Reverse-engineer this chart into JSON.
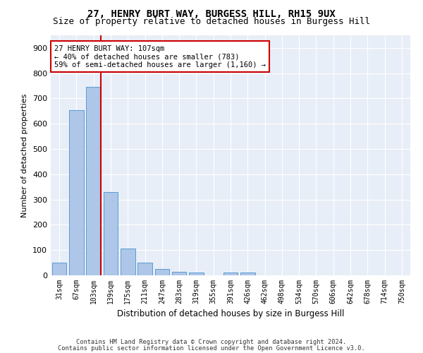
{
  "title": "27, HENRY BURT WAY, BURGESS HILL, RH15 9UX",
  "subtitle": "Size of property relative to detached houses in Burgess Hill",
  "xlabel": "Distribution of detached houses by size in Burgess Hill",
  "ylabel": "Number of detached properties",
  "footnote1": "Contains HM Land Registry data © Crown copyright and database right 2024.",
  "footnote2": "Contains public sector information licensed under the Open Government Licence v3.0.",
  "annotation_line1": "27 HENRY BURT WAY: 107sqm",
  "annotation_line2": "← 40% of detached houses are smaller (783)",
  "annotation_line3": "59% of semi-detached houses are larger (1,160) →",
  "bar_labels": [
    "31sqm",
    "67sqm",
    "103sqm",
    "139sqm",
    "175sqm",
    "211sqm",
    "247sqm",
    "283sqm",
    "319sqm",
    "355sqm",
    "391sqm",
    "426sqm",
    "462sqm",
    "498sqm",
    "534sqm",
    "570sqm",
    "606sqm",
    "642sqm",
    "678sqm",
    "714sqm",
    "750sqm"
  ],
  "bar_values": [
    50,
    655,
    745,
    330,
    105,
    50,
    25,
    15,
    10,
    0,
    10,
    10,
    0,
    0,
    0,
    0,
    0,
    0,
    0,
    0,
    0
  ],
  "bar_color": "#aec6e8",
  "bar_edge_color": "#5b9bd5",
  "vline_color": "#cc0000",
  "ylim": [
    0,
    950
  ],
  "yticks": [
    0,
    100,
    200,
    300,
    400,
    500,
    600,
    700,
    800,
    900
  ],
  "bg_color": "#e8eef7",
  "grid_color": "#ffffff"
}
